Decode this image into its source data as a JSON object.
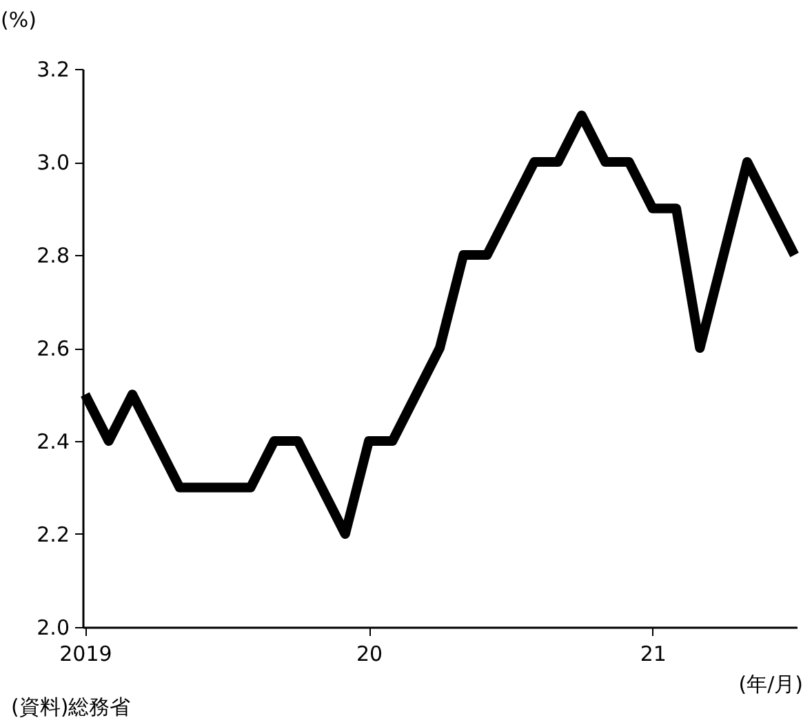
{
  "chart_data": {
    "type": "line",
    "ylabel": "(%)",
    "xlabel": "(年/月)",
    "annotations": [
      "(資料)総務省"
    ],
    "categories": [
      "2019",
      null,
      null,
      null,
      null,
      null,
      null,
      null,
      null,
      null,
      null,
      null,
      "20",
      null,
      null,
      null,
      null,
      null,
      null,
      null,
      null,
      null,
      null,
      null,
      "21",
      null,
      null,
      null,
      null,
      null,
      null
    ],
    "series": [
      {
        "color": "#000000",
        "values": [
          2.5,
          2.4,
          2.5,
          2.4,
          2.3,
          2.3,
          2.3,
          2.3,
          2.4,
          2.4,
          2.3,
          2.2,
          2.4,
          2.4,
          2.5,
          2.6,
          2.8,
          2.8,
          2.9,
          3.0,
          3.0,
          3.1,
          3.0,
          3.0,
          2.9,
          2.9,
          2.6,
          2.8,
          3.0,
          2.9,
          2.8
        ]
      }
    ],
    "ylim": [
      2.0,
      3.2
    ],
    "yticks": [
      {
        "value": 2.0,
        "label": "2.0"
      },
      {
        "value": 2.2,
        "label": "2.2"
      },
      {
        "value": 2.4,
        "label": "2.4"
      },
      {
        "value": 2.6,
        "label": "2.6"
      },
      {
        "value": 2.8,
        "label": "2.8"
      },
      {
        "value": 3.0,
        "label": "3.0"
      },
      {
        "value": 3.2,
        "label": "3.2"
      }
    ],
    "grid": false,
    "legend": false,
    "marker": "none",
    "line_style": "solid"
  }
}
